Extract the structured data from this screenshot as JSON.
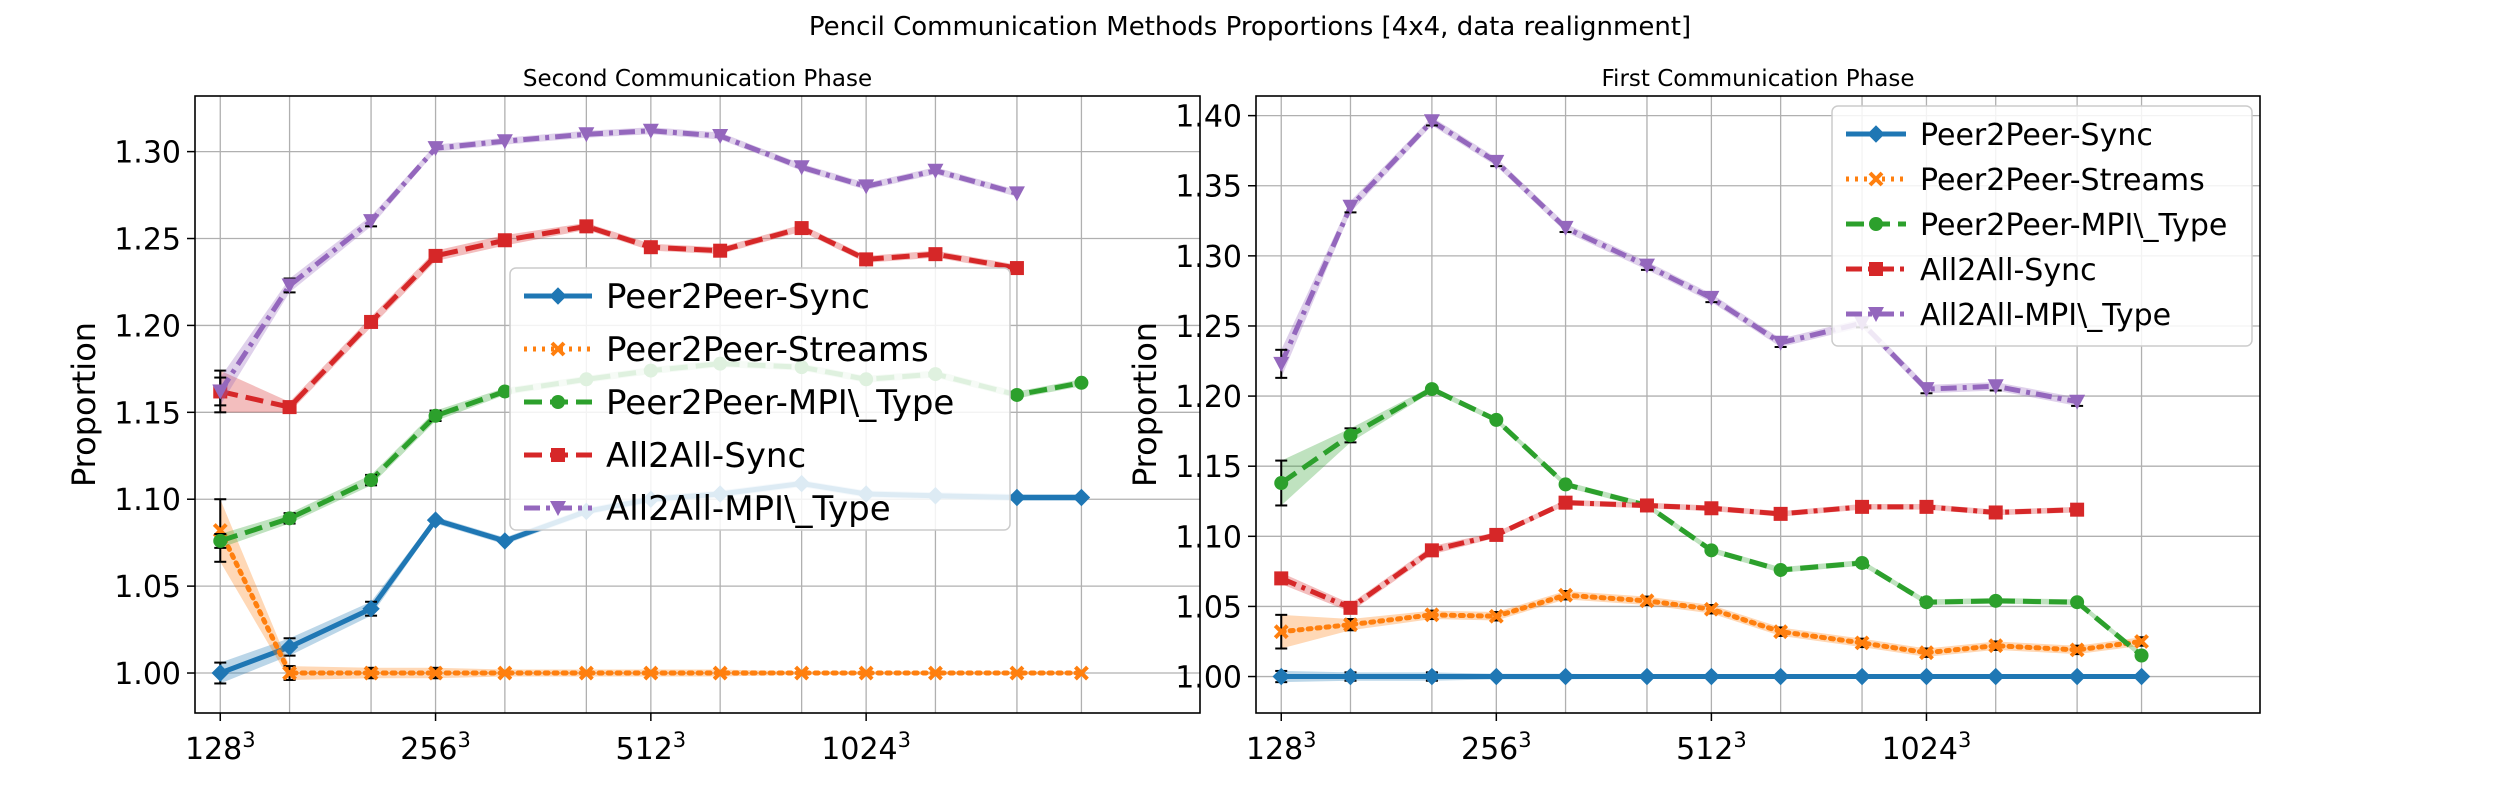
{
  "figure": {
    "title": "Pencil Communication Methods Proportions [4x4, data realignment]"
  },
  "colors": {
    "Peer2Peer-Sync": "#1f77b4",
    "Peer2Peer-Streams": "#ff7f0e",
    "Peer2Peer-MPI\\_Type": "#2ca02c",
    "All2All-Sync": "#d62728",
    "All2All-MPI\\_Type": "#9467bd",
    "grid": "#b0b0b0",
    "errorbar": "#000000"
  },
  "chart_data": [
    {
      "type": "line",
      "title": "Second Communication Phase",
      "xlabel": "",
      "ylabel": "Proportion",
      "x_scale": "log2 of grid size (cube edge)",
      "x_tick_labels": [
        {
          "x": 128,
          "base": "128",
          "exp": "3"
        },
        {
          "x": 256,
          "base": "256",
          "exp": "3"
        },
        {
          "x": 512,
          "base": "512",
          "exp": "3"
        },
        {
          "x": 1024,
          "base": "1024",
          "exp": "3"
        }
      ],
      "xlim": [
        118,
        3000
      ],
      "ylim": [
        0.977,
        1.332
      ],
      "y_ticks": [
        "1.00",
        "1.05",
        "1.10",
        "1.15",
        "1.20",
        "1.25",
        "1.30"
      ],
      "grid": true,
      "legend_position": "center",
      "x": [
        128,
        160,
        208,
        256,
        320,
        416,
        512,
        640,
        832,
        1024,
        1280,
        1664,
        2048
      ],
      "series": [
        {
          "name": "Peer2Peer-Sync",
          "style": "solid",
          "marker": "diamond",
          "values": [
            1.0,
            1.015,
            1.037,
            1.088,
            1.076,
            1.093,
            1.1,
            1.103,
            1.109,
            1.103,
            1.102,
            1.101,
            1.101
          ],
          "errors": [
            0.006,
            0.005,
            0.004,
            0.002,
            0.002,
            0.002,
            0.002,
            0.002,
            0.002,
            0.002,
            0.002,
            0.002,
            0.002
          ]
        },
        {
          "name": "Peer2Peer-Streams",
          "style": "dotted",
          "marker": "x",
          "values": [
            1.082,
            1.0,
            1.0,
            1.0,
            1.0,
            1.0,
            1.0,
            1.0,
            1.0,
            1.0,
            1.0,
            1.0,
            1.0
          ],
          "errors": [
            0.018,
            0.004,
            0.003,
            0.003,
            0.002,
            0.002,
            0.002,
            0.002,
            0.001,
            0.001,
            0.001,
            0.001,
            0.001
          ]
        },
        {
          "name": "Peer2Peer-MPI\\_Type",
          "style": "dashed",
          "marker": "circle",
          "values": [
            1.076,
            1.089,
            1.111,
            1.148,
            1.162,
            1.169,
            1.174,
            1.178,
            1.176,
            1.169,
            1.172,
            1.16,
            1.167
          ],
          "errors": [
            0.004,
            0.003,
            0.003,
            0.003,
            0.002,
            0.002,
            0.002,
            0.002,
            0.002,
            0.002,
            0.002,
            0.002,
            0.002
          ]
        },
        {
          "name": "All2All-Sync",
          "style": "dashed",
          "marker": "square",
          "values": [
            1.162,
            1.153,
            1.202,
            1.24,
            1.249,
            1.257,
            1.245,
            1.243,
            1.256,
            1.238,
            1.241,
            1.233,
            null
          ],
          "errors": [
            0.012,
            0.003,
            0.003,
            0.003,
            0.003,
            0.002,
            0.002,
            0.002,
            0.002,
            0.002,
            0.002,
            0.002,
            null
          ]
        },
        {
          "name": "All2All-MPI\\_Type",
          "style": "dashdot",
          "marker": "triangle-down",
          "values": [
            1.162,
            1.223,
            1.26,
            1.302,
            1.306,
            1.31,
            1.312,
            1.309,
            1.291,
            1.28,
            1.289,
            1.276,
            null
          ],
          "errors": [
            0.008,
            0.004,
            0.003,
            0.002,
            0.002,
            0.002,
            0.002,
            0.002,
            0.002,
            0.002,
            0.002,
            0.002,
            null
          ]
        }
      ]
    },
    {
      "type": "line",
      "title": "First Communication Phase",
      "xlabel": "",
      "ylabel": "Proportion",
      "x_scale": "log2 of grid size (cube edge)",
      "x_tick_labels": [
        {
          "x": 128,
          "base": "128",
          "exp": "3"
        },
        {
          "x": 256,
          "base": "256",
          "exp": "3"
        },
        {
          "x": 512,
          "base": "512",
          "exp": "3"
        },
        {
          "x": 1024,
          "base": "1024",
          "exp": "3"
        }
      ],
      "xlim": [
        118,
        3000
      ],
      "ylim": [
        0.974,
        1.414
      ],
      "y_ticks": [
        "1.00",
        "1.05",
        "1.10",
        "1.15",
        "1.20",
        "1.25",
        "1.30",
        "1.35",
        "1.40"
      ],
      "grid": true,
      "legend_position": "upper right",
      "x": [
        128,
        160,
        208,
        256,
        320,
        416,
        512,
        640,
        832,
        1024,
        1280,
        1664,
        2048
      ],
      "series": [
        {
          "name": "Peer2Peer-Sync",
          "style": "solid",
          "marker": "diamond",
          "values": [
            1.0,
            1.0,
            1.0,
            1.0,
            1.0,
            1.0,
            1.0,
            1.0,
            1.0,
            1.0,
            1.0,
            1.0,
            1.0
          ],
          "errors": [
            0.004,
            0.003,
            0.003,
            0.002,
            0.002,
            0.001,
            0.001,
            0.001,
            0.001,
            0.001,
            0.001,
            0.001,
            0.001
          ]
        },
        {
          "name": "Peer2Peer-Streams",
          "style": "dotted",
          "marker": "x",
          "values": [
            1.032,
            1.037,
            1.044,
            1.043,
            1.058,
            1.054,
            1.048,
            1.032,
            1.024,
            1.017,
            1.022,
            1.019,
            1.025
          ],
          "errors": [
            0.012,
            0.004,
            0.003,
            0.003,
            0.003,
            0.003,
            0.003,
            0.003,
            0.003,
            0.003,
            0.003,
            0.003,
            0.003
          ]
        },
        {
          "name": "Peer2Peer-MPI\\_Type",
          "style": "dashed",
          "marker": "circle",
          "values": [
            1.138,
            1.172,
            1.205,
            1.183,
            1.137,
            1.122,
            1.09,
            1.076,
            1.081,
            1.053,
            1.054,
            1.053,
            1.015
          ],
          "errors": [
            0.016,
            0.005,
            0.002,
            0.002,
            0.002,
            0.002,
            0.002,
            0.002,
            0.002,
            0.002,
            0.002,
            0.002,
            0.002
          ]
        },
        {
          "name": "All2All-Sync",
          "style": "dashdot",
          "marker": "square",
          "values": [
            1.07,
            1.049,
            1.09,
            1.101,
            1.124,
            1.122,
            1.12,
            1.116,
            1.121,
            1.121,
            1.117,
            1.119,
            null
          ],
          "errors": [
            0.004,
            0.003,
            0.003,
            0.002,
            0.002,
            0.002,
            0.002,
            0.002,
            0.002,
            0.002,
            0.002,
            0.002,
            null
          ]
        },
        {
          "name": "All2All-MPI\\_Type",
          "style": "dashdot",
          "marker": "triangle-down",
          "values": [
            1.223,
            1.335,
            1.396,
            1.367,
            1.32,
            1.293,
            1.27,
            1.238,
            1.252,
            1.205,
            1.207,
            1.196,
            null
          ],
          "errors": [
            0.01,
            0.004,
            0.003,
            0.003,
            0.003,
            0.003,
            0.003,
            0.003,
            0.003,
            0.003,
            0.003,
            0.003,
            null
          ]
        }
      ]
    }
  ]
}
